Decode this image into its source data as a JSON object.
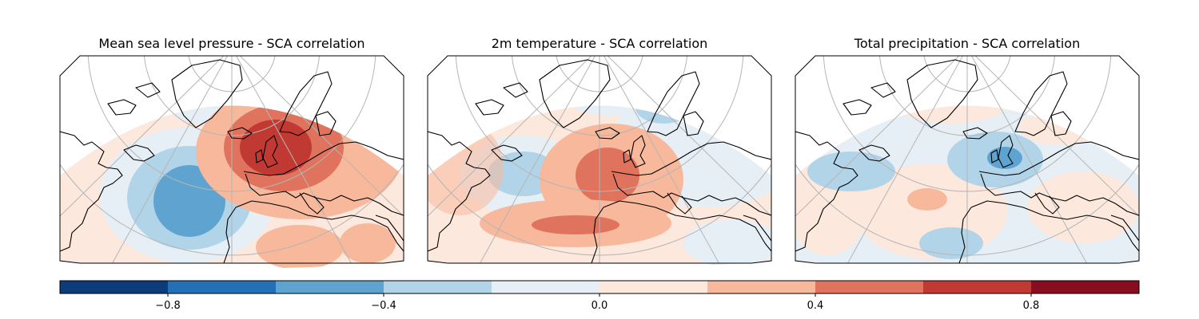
{
  "panels": [
    {
      "title": "Mean sea level pressure - SCA correlation"
    },
    {
      "title": "2m temperature - SCA correlation"
    },
    {
      "title": "Total precipitation - SCA correlation"
    }
  ],
  "colorbar": {
    "range": [
      -1.0,
      1.0
    ],
    "levels": [
      -1.0,
      -0.8,
      -0.6,
      -0.4,
      -0.2,
      0.0,
      0.2,
      0.4,
      0.6,
      0.8,
      1.0
    ],
    "colors": [
      "#0b3d7a",
      "#2470b6",
      "#5fa3d1",
      "#b2d4e8",
      "#e6eff6",
      "#fce8dd",
      "#f7b89b",
      "#e0735d",
      "#c03a33",
      "#8a0c20"
    ],
    "ticks": [
      -0.8,
      -0.4,
      0.0,
      0.4,
      0.8
    ],
    "tick_labels": [
      "−0.8",
      "−0.4",
      "0.0",
      "0.4",
      "0.8"
    ]
  },
  "colors": {
    "land_outline": "#000000",
    "graticule": "#b5b5b5",
    "neutral_pos": "#fce8dd",
    "neutral_neg": "#e6eff6"
  }
}
